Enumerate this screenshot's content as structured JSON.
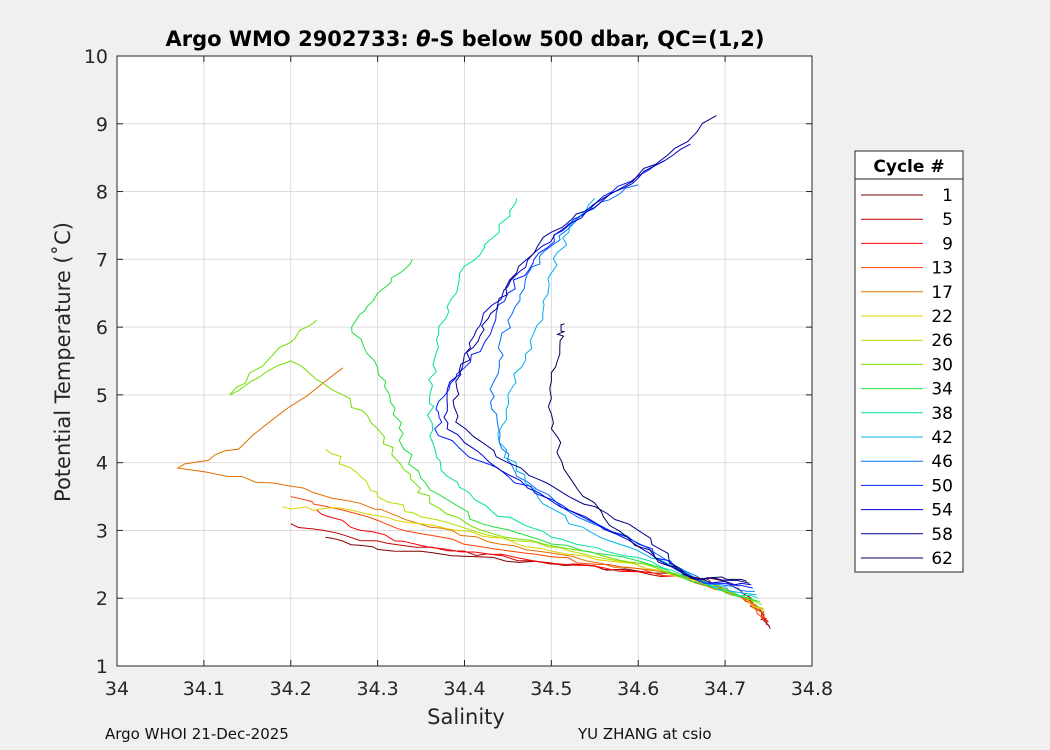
{
  "chart_data": {
    "type": "line",
    "title_prefix": "Argo WMO 2902733: ",
    "title_theta": "θ",
    "title_suffix": "-S below 500 dbar,  QC=(1,2)",
    "xlabel": "Salinity",
    "ylabel": "Potential Temperature (˚C)",
    "xlim": [
      34,
      34.8
    ],
    "ylim": [
      1,
      10
    ],
    "xticks": [
      34,
      34.1,
      34.2,
      34.3,
      34.4,
      34.5,
      34.6,
      34.7,
      34.8
    ],
    "xtick_labels": [
      "34",
      "34.1",
      "34.2",
      "34.3",
      "34.4",
      "34.5",
      "34.6",
      "34.7",
      "34.8"
    ],
    "yticks": [
      1,
      2,
      3,
      4,
      5,
      6,
      7,
      8,
      9,
      10
    ],
    "ytick_labels": [
      "1",
      "2",
      "3",
      "4",
      "5",
      "6",
      "7",
      "8",
      "9",
      "10"
    ],
    "grid": true,
    "legend_title": "Cycle #",
    "legend_position": "outside-right",
    "series": [
      {
        "name": "1",
        "color": "#800000",
        "points": [
          [
            34.752,
            1.55
          ],
          [
            34.742,
            1.85
          ],
          [
            34.7,
            2.25
          ],
          [
            34.6,
            2.4
          ],
          [
            34.5,
            2.52
          ],
          [
            34.4,
            2.62
          ],
          [
            34.3,
            2.72
          ],
          [
            34.24,
            2.9
          ]
        ]
      },
      {
        "name": "5",
        "color": "#c00000",
        "points": [
          [
            34.748,
            1.6
          ],
          [
            34.735,
            1.9
          ],
          [
            34.68,
            2.28
          ],
          [
            34.58,
            2.42
          ],
          [
            34.48,
            2.55
          ],
          [
            34.38,
            2.7
          ],
          [
            34.28,
            2.85
          ],
          [
            34.2,
            3.1
          ]
        ]
      },
      {
        "name": "9",
        "color": "#ff0000",
        "points": [
          [
            34.75,
            1.65
          ],
          [
            34.73,
            1.95
          ],
          [
            34.67,
            2.3
          ],
          [
            34.56,
            2.45
          ],
          [
            34.46,
            2.6
          ],
          [
            34.36,
            2.75
          ],
          [
            34.28,
            3.0
          ],
          [
            34.23,
            3.3
          ]
        ]
      },
      {
        "name": "13",
        "color": "#ff4000",
        "points": [
          [
            34.748,
            1.7
          ],
          [
            34.72,
            2.0
          ],
          [
            34.65,
            2.32
          ],
          [
            34.55,
            2.5
          ],
          [
            34.45,
            2.7
          ],
          [
            34.35,
            2.95
          ],
          [
            34.26,
            3.3
          ],
          [
            34.2,
            3.5
          ]
        ]
      },
      {
        "name": "17",
        "color": "#e07000",
        "points": [
          [
            34.746,
            1.75
          ],
          [
            34.715,
            2.05
          ],
          [
            34.64,
            2.35
          ],
          [
            34.54,
            2.55
          ],
          [
            34.44,
            2.8
          ],
          [
            34.36,
            3.05
          ],
          [
            34.28,
            3.4
          ],
          [
            34.18,
            3.7
          ],
          [
            34.07,
            3.92
          ],
          [
            34.14,
            4.2
          ],
          [
            34.26,
            5.4
          ]
        ]
      },
      {
        "name": "22",
        "color": "#e0d000",
        "points": [
          [
            34.745,
            1.8
          ],
          [
            34.71,
            2.08
          ],
          [
            34.63,
            2.4
          ],
          [
            34.52,
            2.65
          ],
          [
            34.43,
            2.9
          ],
          [
            34.35,
            3.1
          ],
          [
            34.27,
            3.3
          ],
          [
            34.19,
            3.35
          ]
        ]
      },
      {
        "name": "26",
        "color": "#b0e000",
        "points": [
          [
            34.744,
            1.85
          ],
          [
            34.705,
            2.1
          ],
          [
            34.62,
            2.45
          ],
          [
            34.52,
            2.7
          ],
          [
            34.44,
            2.9
          ],
          [
            34.35,
            3.2
          ],
          [
            34.3,
            3.5
          ],
          [
            34.28,
            3.8
          ],
          [
            34.24,
            4.2
          ]
        ]
      },
      {
        "name": "30",
        "color": "#70e000",
        "points": [
          [
            34.742,
            1.9
          ],
          [
            34.7,
            2.12
          ],
          [
            34.61,
            2.5
          ],
          [
            34.51,
            2.75
          ],
          [
            34.42,
            3.0
          ],
          [
            34.36,
            3.4
          ],
          [
            34.33,
            3.9
          ],
          [
            34.3,
            4.5
          ],
          [
            34.26,
            5.0
          ],
          [
            34.2,
            5.5
          ],
          [
            34.13,
            5.0
          ],
          [
            34.18,
            5.6
          ],
          [
            34.23,
            6.1
          ]
        ]
      },
      {
        "name": "34",
        "color": "#20e040",
        "points": [
          [
            34.74,
            1.95
          ],
          [
            34.69,
            2.15
          ],
          [
            34.6,
            2.55
          ],
          [
            34.5,
            2.8
          ],
          [
            34.42,
            3.1
          ],
          [
            34.36,
            3.6
          ],
          [
            34.33,
            4.2
          ],
          [
            34.32,
            4.8
          ],
          [
            34.3,
            5.4
          ],
          [
            34.27,
            6.0
          ],
          [
            34.3,
            6.5
          ],
          [
            34.34,
            7.0
          ]
        ]
      },
      {
        "name": "38",
        "color": "#00e0a0",
        "points": [
          [
            34.738,
            2.0
          ],
          [
            34.685,
            2.17
          ],
          [
            34.6,
            2.6
          ],
          [
            34.5,
            2.9
          ],
          [
            34.43,
            3.3
          ],
          [
            34.38,
            3.8
          ],
          [
            34.36,
            4.4
          ],
          [
            34.36,
            5.0
          ],
          [
            34.37,
            5.7
          ],
          [
            34.38,
            6.3
          ],
          [
            34.4,
            6.9
          ],
          [
            34.44,
            7.4
          ],
          [
            34.46,
            7.9
          ]
        ]
      },
      {
        "name": "42",
        "color": "#00b0f0",
        "points": [
          [
            34.736,
            2.05
          ],
          [
            34.68,
            2.2
          ],
          [
            34.6,
            2.7
          ],
          [
            34.52,
            3.1
          ],
          [
            34.47,
            3.7
          ],
          [
            34.44,
            4.3
          ],
          [
            34.45,
            5.0
          ],
          [
            34.47,
            5.6
          ],
          [
            34.49,
            6.2
          ],
          [
            34.5,
            6.8
          ],
          [
            34.52,
            7.4
          ],
          [
            34.55,
            7.9
          ]
        ]
      },
      {
        "name": "46",
        "color": "#0070ff",
        "points": [
          [
            34.734,
            2.1
          ],
          [
            34.675,
            2.22
          ],
          [
            34.61,
            2.75
          ],
          [
            34.53,
            3.2
          ],
          [
            34.46,
            3.8
          ],
          [
            34.44,
            4.3
          ],
          [
            34.43,
            4.9
          ],
          [
            34.44,
            5.5
          ],
          [
            34.45,
            6.1
          ],
          [
            34.47,
            6.7
          ],
          [
            34.5,
            7.2
          ],
          [
            34.54,
            7.7
          ],
          [
            34.6,
            8.1
          ]
        ]
      },
      {
        "name": "50",
        "color": "#0020ff",
        "points": [
          [
            34.732,
            2.15
          ],
          [
            34.67,
            2.25
          ],
          [
            34.6,
            2.8
          ],
          [
            34.52,
            3.3
          ],
          [
            34.45,
            3.8
          ],
          [
            34.37,
            4.4
          ],
          [
            34.37,
            4.9
          ],
          [
            34.4,
            5.4
          ],
          [
            34.43,
            5.9
          ],
          [
            34.45,
            6.5
          ],
          [
            34.48,
            7.0
          ],
          [
            34.52,
            7.5
          ],
          [
            34.57,
            8.0
          ],
          [
            34.63,
            8.45
          ]
        ]
      },
      {
        "name": "54",
        "color": "#0000d0",
        "points": [
          [
            34.73,
            2.2
          ],
          [
            34.665,
            2.28
          ],
          [
            34.59,
            2.85
          ],
          [
            34.51,
            3.35
          ],
          [
            34.44,
            3.9
          ],
          [
            34.38,
            4.5
          ],
          [
            34.38,
            5.0
          ],
          [
            34.4,
            5.6
          ],
          [
            34.42,
            6.1
          ],
          [
            34.45,
            6.6
          ],
          [
            34.49,
            7.2
          ],
          [
            34.54,
            7.7
          ],
          [
            34.6,
            8.2
          ],
          [
            34.66,
            8.7
          ]
        ]
      },
      {
        "name": "58",
        "color": "#000090",
        "points": [
          [
            34.728,
            2.22
          ],
          [
            34.66,
            2.3
          ],
          [
            34.6,
            3.0
          ],
          [
            34.52,
            3.5
          ],
          [
            34.45,
            4.0
          ],
          [
            34.39,
            4.6
          ],
          [
            34.39,
            5.2
          ],
          [
            34.41,
            5.7
          ],
          [
            34.43,
            6.2
          ],
          [
            34.46,
            6.8
          ],
          [
            34.5,
            7.4
          ],
          [
            34.56,
            7.9
          ],
          [
            34.62,
            8.4
          ],
          [
            34.69,
            9.12
          ]
        ]
      },
      {
        "name": "62",
        "color": "#000060",
        "points": [
          [
            34.725,
            2.25
          ],
          [
            34.66,
            2.32
          ],
          [
            34.62,
            2.6
          ],
          [
            34.56,
            3.2
          ],
          [
            34.52,
            3.8
          ],
          [
            34.5,
            4.5
          ],
          [
            34.5,
            5.2
          ],
          [
            34.51,
            5.8
          ],
          [
            34.515,
            6.05
          ]
        ]
      }
    ]
  },
  "footer": {
    "left": "Argo WHOI 21-Dec-2025",
    "right": "YU ZHANG at csio"
  }
}
